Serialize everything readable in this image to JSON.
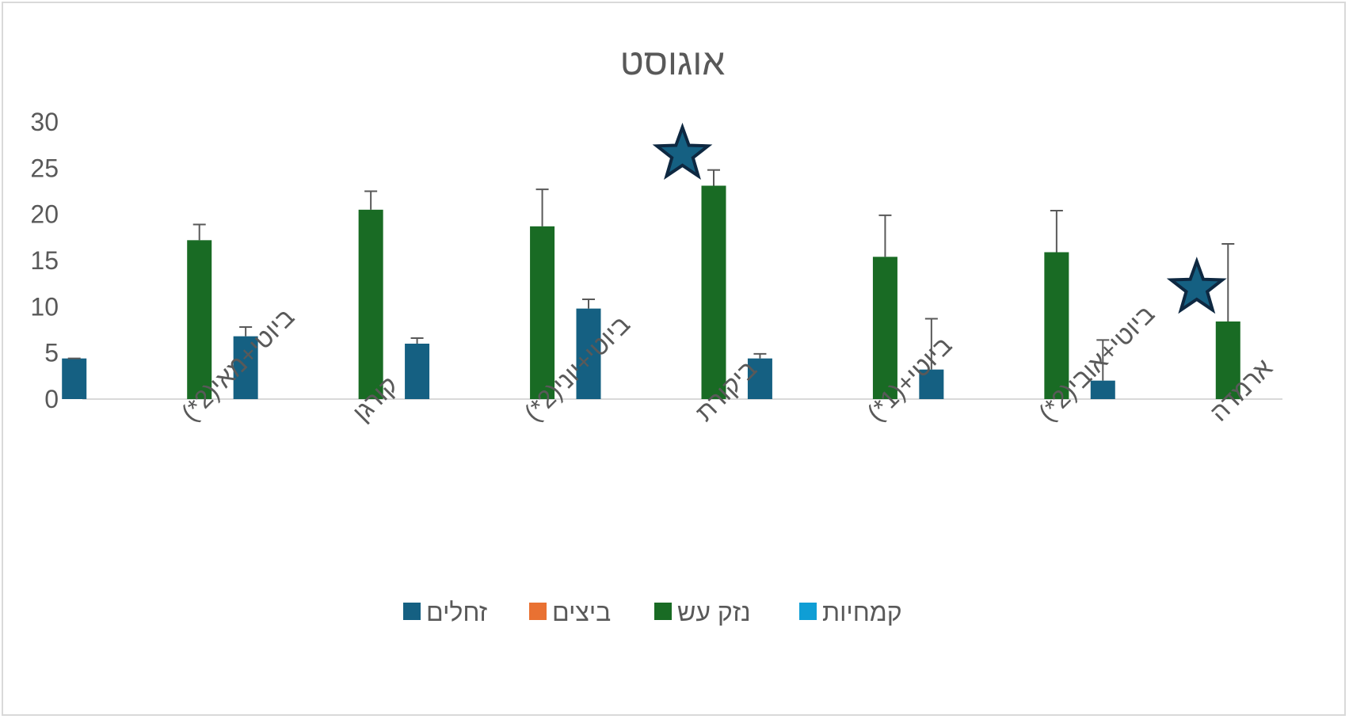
{
  "chart_data": {
    "type": "bar",
    "title": "אוגוסט",
    "xlabel": "",
    "ylabel": "",
    "ylim": [
      0,
      30
    ],
    "yticks": [
      0,
      5,
      10,
      15,
      20,
      25,
      30
    ],
    "grid": false,
    "legend_position": "bottom",
    "categories": [
      "ביוטי+מאי(2*)",
      "קורגן",
      "ביוטי+יוני(2*)",
      "ביקורת",
      "ביוטי+(1*)",
      "ביוטי+אובי(2*)",
      "ארמדה"
    ],
    "series": [
      {
        "name": "זחלים",
        "color": "#156082",
        "values": [
          4.4,
          6.8,
          6.0,
          9.8,
          4.4,
          3.2,
          2.0
        ],
        "errors": [
          0.0,
          1.0,
          0.6,
          1.0,
          0.5,
          5.5,
          4.4
        ]
      },
      {
        "name": "ביצים",
        "color": "#e97132",
        "values": [
          0,
          0,
          0,
          0,
          0,
          0,
          0
        ],
        "errors": [
          0,
          0,
          0,
          0,
          0,
          0,
          0
        ]
      },
      {
        "name": "נזק עש",
        "color": "#196b24",
        "values": [
          17.2,
          20.5,
          18.7,
          23.1,
          15.4,
          15.9,
          8.4
        ],
        "errors": [
          1.7,
          2.0,
          4.0,
          1.7,
          4.5,
          4.5,
          8.4
        ]
      },
      {
        "name": "קמחיות",
        "color": "#0f9ed5",
        "values": [
          0,
          0,
          0,
          0,
          0,
          0,
          0
        ],
        "errors": [
          0,
          0,
          0,
          0,
          0,
          0,
          0
        ]
      }
    ],
    "annotations": [
      {
        "symbol": "star",
        "category_index": 3,
        "y": 26.5
      },
      {
        "symbol": "star",
        "category_index": 6,
        "y": 12.0
      }
    ]
  },
  "colors": {
    "axis_text": "#595959",
    "error_bar": "#595959",
    "star_fill": "#156082",
    "star_stroke": "#0e2841"
  },
  "legend_order": [
    0,
    1,
    2,
    3
  ]
}
